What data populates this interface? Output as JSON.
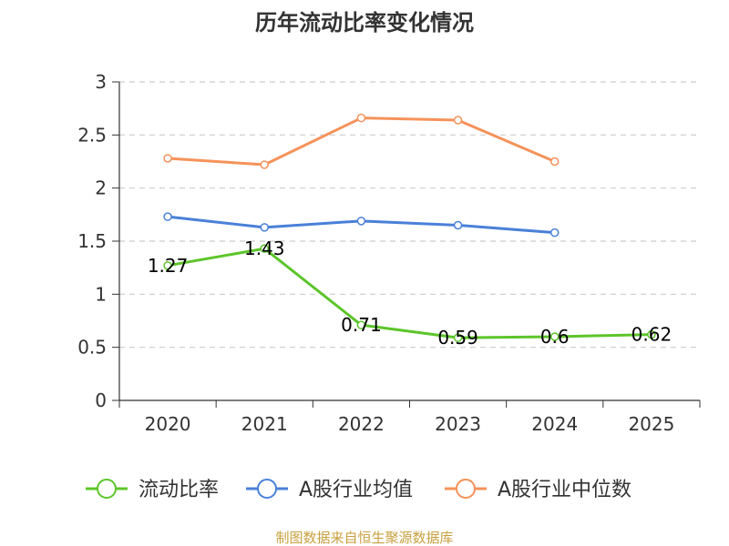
{
  "chart_data": {
    "type": "line",
    "title": "历年流动比率变化情况",
    "categories": [
      "2020",
      "2021",
      "2022",
      "2023",
      "2024",
      "2025"
    ],
    "y_ticks": [
      "0",
      "0.5",
      "1",
      "1.5",
      "2",
      "2.5",
      "3"
    ],
    "ylim": [
      0,
      3
    ],
    "grid": true,
    "legend_position": "bottom",
    "series": [
      {
        "name": "流动比率",
        "color": "#5cc52a",
        "values": [
          1.27,
          1.43,
          0.71,
          0.59,
          0.6,
          0.62
        ],
        "labels": [
          "1.27",
          "1.43",
          "0.71",
          "0.59",
          "0.6",
          "0.62"
        ]
      },
      {
        "name": "A股行业均值",
        "color": "#4a80d8",
        "values": [
          1.73,
          1.63,
          1.69,
          1.65,
          1.58,
          null
        ]
      },
      {
        "name": "A股行业中位数",
        "color": "#f5925a",
        "values": [
          2.28,
          2.22,
          2.66,
          2.64,
          2.25,
          null
        ]
      }
    ]
  },
  "source": {
    "text": "制图数据来自恒生聚源数据库",
    "color": "#c8a040"
  }
}
